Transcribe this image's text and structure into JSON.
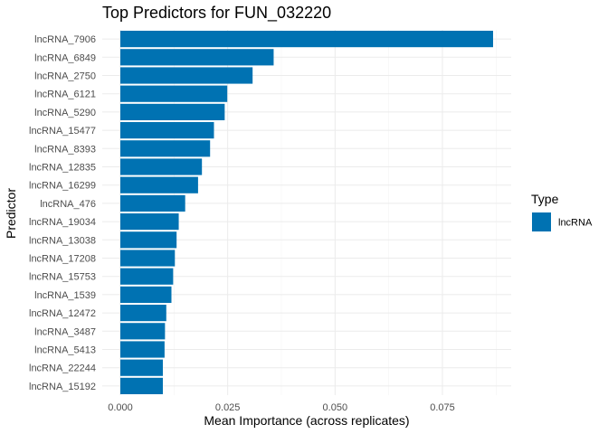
{
  "chart_data": {
    "type": "bar",
    "orientation": "horizontal",
    "title": "Top Predictors for FUN_032220",
    "xlabel": "Mean Importance (across replicates)",
    "ylabel": "Predictor",
    "xlim": [
      0,
      0.0905
    ],
    "xticks": [
      0.0,
      0.025,
      0.05,
      0.075
    ],
    "xtick_labels": [
      "0.000",
      "0.025",
      "0.050",
      "0.075"
    ],
    "grid": true,
    "legend": {
      "title": "Type",
      "position": "right",
      "entries": [
        {
          "label": "lncRNA",
          "color": "#0072B2"
        }
      ]
    },
    "bar_color": "#0072B2",
    "categories": [
      "lncRNA_7906",
      "lncRNA_6849",
      "lncRNA_2750",
      "lncRNA_6121",
      "lncRNA_5290",
      "lncRNA_15477",
      "lncRNA_8393",
      "lncRNA_12835",
      "lncRNA_16299",
      "lncRNA_476",
      "lncRNA_19034",
      "lncRNA_13038",
      "lncRNA_17208",
      "lncRNA_15753",
      "lncRNA_1539",
      "lncRNA_12472",
      "lncRNA_3487",
      "lncRNA_5413",
      "lncRNA_22244",
      "lncRNA_15192"
    ],
    "values": [
      0.0868,
      0.0357,
      0.0308,
      0.0249,
      0.0243,
      0.0218,
      0.0209,
      0.019,
      0.0181,
      0.0151,
      0.0136,
      0.0131,
      0.0127,
      0.0123,
      0.0119,
      0.0107,
      0.0104,
      0.0103,
      0.0099,
      0.0099
    ]
  }
}
